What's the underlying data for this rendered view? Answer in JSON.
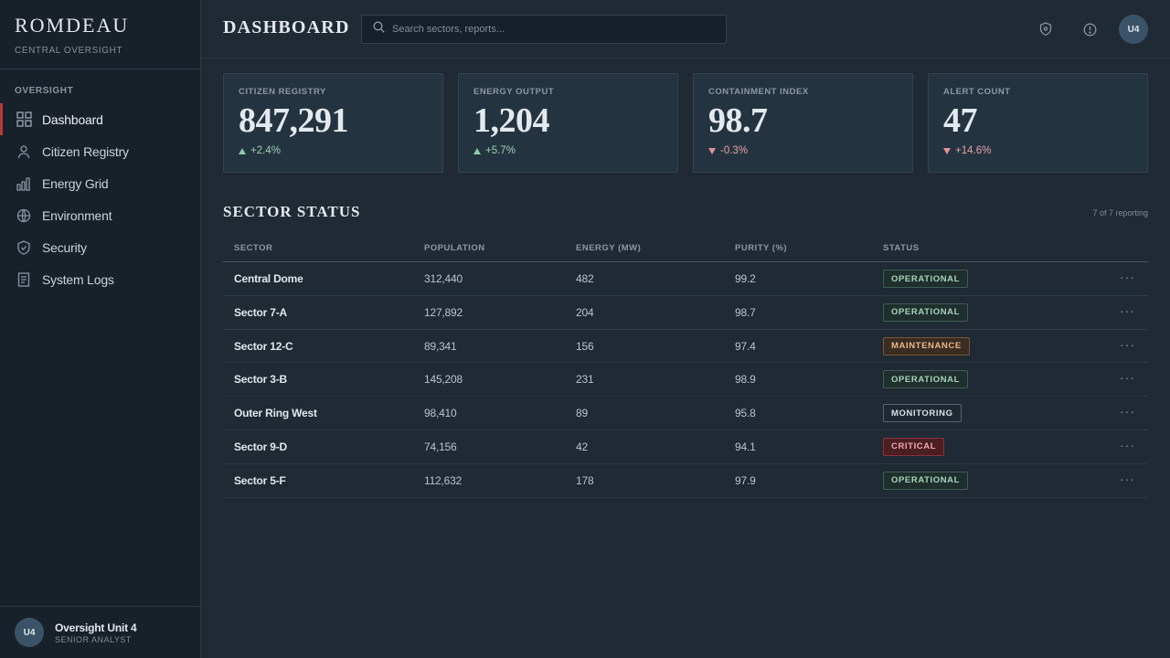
{
  "brand": {
    "name": "ROMDEAU",
    "subtitle": "CENTRAL OVERSIGHT"
  },
  "sidebar": {
    "section_label": "OVERSIGHT",
    "items": [
      {
        "label": "Dashboard",
        "icon": "grid-icon",
        "active": true
      },
      {
        "label": "Citizen Registry",
        "icon": "user-icon"
      },
      {
        "label": "Energy Grid",
        "icon": "bar-chart-icon"
      },
      {
        "label": "Environment",
        "icon": "globe-icon"
      },
      {
        "label": "Security",
        "icon": "shield-icon"
      },
      {
        "label": "System Logs",
        "icon": "document-icon"
      }
    ]
  },
  "user": {
    "initials": "U4",
    "name": "Oversight Unit 4",
    "role": "SENIOR ANALYST"
  },
  "header": {
    "title": "DASHBOARD",
    "search_placeholder": "Search sectors, reports...",
    "avatar_initials": "U4",
    "icons": [
      "shield-alert-icon",
      "info-icon"
    ]
  },
  "stats": [
    {
      "label": "CITIZEN REGISTRY",
      "value": "847,291",
      "delta": "+2.4%",
      "trend": "up"
    },
    {
      "label": "ENERGY OUTPUT",
      "value": "1,204",
      "delta": "+5.7%",
      "trend": "up"
    },
    {
      "label": "CONTAINMENT INDEX",
      "value": "98.7",
      "delta": "-0.3%",
      "trend": "down"
    },
    {
      "label": "ALERT COUNT",
      "value": "47",
      "delta": "+14.6%",
      "trend": "down"
    }
  ],
  "sector_status": {
    "title": "SECTOR STATUS",
    "meta": "7 of 7 reporting",
    "columns": [
      "SECTOR",
      "POPULATION",
      "ENERGY (MW)",
      "PURITY (%)",
      "STATUS"
    ],
    "rows": [
      {
        "sector": "Central Dome",
        "population": "312,440",
        "energy": "482",
        "purity": "99.2",
        "status": "OPERATIONAL",
        "status_kind": "operational"
      },
      {
        "sector": "Sector 7-A",
        "population": "127,892",
        "energy": "204",
        "purity": "98.7",
        "status": "OPERATIONAL",
        "status_kind": "operational"
      },
      {
        "sector": "Sector 12-C",
        "population": "89,341",
        "energy": "156",
        "purity": "97.4",
        "status": "MAINTENANCE",
        "status_kind": "maintenance"
      },
      {
        "sector": "Sector 3-B",
        "population": "145,208",
        "energy": "231",
        "purity": "98.9",
        "status": "OPERATIONAL",
        "status_kind": "operational"
      },
      {
        "sector": "Outer Ring West",
        "population": "98,410",
        "energy": "89",
        "purity": "95.8",
        "status": "MONITORING",
        "status_kind": "monitoring"
      },
      {
        "sector": "Sector 9-D",
        "population": "74,156",
        "energy": "42",
        "purity": "94.1",
        "status": "CRITICAL",
        "status_kind": "critical"
      },
      {
        "sector": "Sector 5-F",
        "population": "112,632",
        "energy": "178",
        "purity": "97.9",
        "status": "OPERATIONAL",
        "status_kind": "operational"
      }
    ],
    "row_action_icon": "more-horizontal-icon"
  },
  "colors": {
    "accent": "#b7393d",
    "background": "#1f2a34",
    "sidebar": "#18212a",
    "positive": "#8fc9a6",
    "negative": "#e39298"
  }
}
